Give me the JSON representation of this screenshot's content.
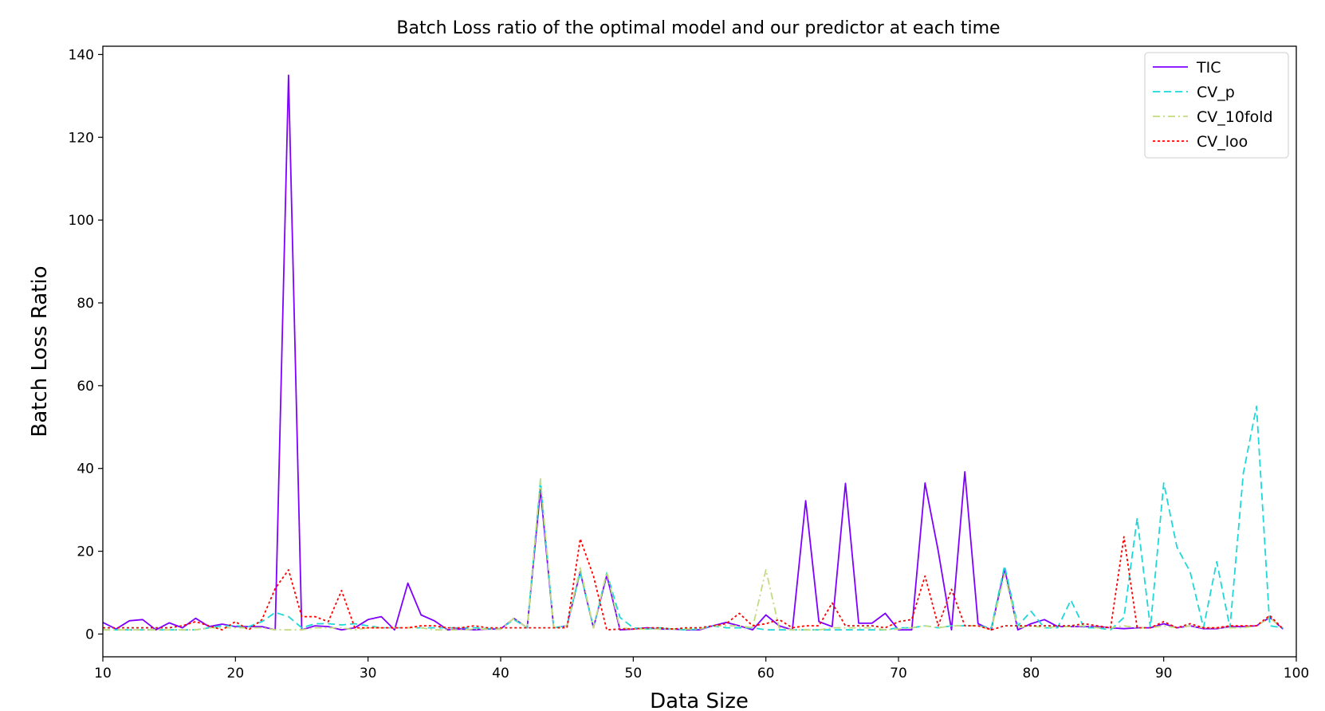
{
  "chart_data": {
    "type": "line",
    "title": "Batch Loss ratio of the optimal model and our predictor at each time",
    "xlabel": "Data Size",
    "ylabel": "Batch Loss Ratio",
    "xlim": [
      10,
      100
    ],
    "ylim": [
      -5.5,
      142
    ],
    "xticks": [
      10,
      20,
      30,
      40,
      50,
      60,
      70,
      80,
      90,
      100
    ],
    "yticks": [
      0,
      20,
      40,
      60,
      80,
      100,
      120,
      140
    ],
    "grid": false,
    "legend_position": "top-right",
    "x": [
      10,
      11,
      12,
      13,
      14,
      15,
      16,
      17,
      18,
      19,
      20,
      21,
      22,
      23,
      24,
      25,
      26,
      27,
      28,
      29,
      30,
      31,
      32,
      33,
      34,
      35,
      36,
      37,
      38,
      39,
      40,
      41,
      42,
      43,
      44,
      45,
      46,
      47,
      48,
      49,
      50,
      51,
      52,
      53,
      54,
      55,
      56,
      57,
      58,
      59,
      60,
      61,
      62,
      63,
      64,
      65,
      66,
      67,
      68,
      69,
      70,
      71,
      72,
      73,
      74,
      75,
      76,
      77,
      78,
      79,
      80,
      81,
      82,
      83,
      84,
      85,
      86,
      87,
      88,
      89,
      90,
      91,
      92,
      93,
      94,
      95,
      96,
      97,
      98,
      99
    ],
    "series": [
      {
        "name": "TIC",
        "color": "#7f00ff",
        "dash": "solid",
        "values": [
          2.8,
          1.2,
          3.2,
          3.5,
          1.0,
          2.7,
          1.5,
          3.8,
          1.8,
          2.4,
          1.8,
          1.8,
          1.8,
          1.0,
          135.0,
          1.0,
          2.0,
          1.8,
          1.0,
          1.5,
          3.5,
          4.2,
          1.0,
          12.3,
          4.6,
          3.2,
          1.0,
          1.2,
          1.0,
          1.2,
          1.2,
          3.8,
          1.5,
          35.0,
          1.5,
          2.0,
          15.0,
          1.5,
          14.2,
          1.0,
          1.2,
          1.5,
          1.2,
          1.2,
          1.0,
          1.0,
          2.0,
          2.8,
          2.0,
          1.0,
          4.6,
          2.0,
          1.0,
          32.2,
          3.0,
          1.8,
          36.4,
          2.6,
          2.6,
          5.0,
          1.0,
          1.0,
          36.5,
          20.0,
          1.0,
          39.2,
          2.5,
          1.0,
          15.8,
          1.0,
          2.5,
          3.5,
          1.8,
          1.8,
          1.8,
          1.8,
          1.5,
          1.3,
          1.5,
          1.5,
          2.5,
          1.5,
          2.0,
          1.3,
          1.3,
          1.8,
          1.8,
          2.0,
          4.0,
          1.2
        ]
      },
      {
        "name": "CV_p",
        "color": "#1dd8d8",
        "dash": "dashed",
        "values": [
          1.0,
          1.0,
          1.0,
          1.0,
          1.0,
          1.0,
          1.0,
          1.0,
          1.5,
          2.0,
          2.0,
          1.8,
          3.0,
          5.2,
          4.2,
          1.5,
          2.5,
          2.5,
          2.2,
          2.5,
          2.0,
          1.5,
          1.5,
          1.5,
          1.5,
          1.5,
          1.5,
          1.5,
          1.5,
          1.3,
          1.3,
          3.5,
          1.5,
          37.0,
          1.5,
          2.0,
          15.0,
          1.5,
          14.8,
          4.0,
          1.5,
          1.2,
          1.5,
          1.2,
          1.0,
          1.2,
          2.0,
          1.5,
          1.5,
          1.5,
          1.0,
          1.0,
          1.0,
          1.0,
          1.0,
          1.0,
          1.0,
          1.0,
          1.0,
          1.0,
          1.5,
          1.5,
          2.0,
          1.5,
          2.0,
          2.0,
          2.0,
          1.5,
          16.5,
          2.0,
          5.5,
          1.5,
          1.5,
          8.2,
          1.5,
          1.5,
          1.0,
          4.0,
          28.0,
          1.5,
          36.5,
          21.0,
          15.0,
          1.5,
          17.5,
          1.5,
          38.8,
          55.0,
          2.0,
          1.5
        ]
      },
      {
        "name": "CV_10fold",
        "color": "#c3db7e",
        "dash": "dashdot",
        "values": [
          1.0,
          1.0,
          1.0,
          1.0,
          1.0,
          1.0,
          1.0,
          1.0,
          1.5,
          1.5,
          1.5,
          1.5,
          1.5,
          1.0,
          1.0,
          1.0,
          1.5,
          1.5,
          1.5,
          1.0,
          1.5,
          1.5,
          1.5,
          1.5,
          1.5,
          1.0,
          1.0,
          1.0,
          1.2,
          1.2,
          1.2,
          3.8,
          1.5,
          37.5,
          1.5,
          2.0,
          16.0,
          1.5,
          15.0,
          1.5,
          1.2,
          1.2,
          1.2,
          1.2,
          1.2,
          1.2,
          2.0,
          2.0,
          2.0,
          1.5,
          15.5,
          1.5,
          1.0,
          1.0,
          1.0,
          1.5,
          1.5,
          1.5,
          1.5,
          1.0,
          1.2,
          1.5,
          2.0,
          1.5,
          2.0,
          2.0,
          2.0,
          1.0,
          14.5,
          1.5,
          2.0,
          1.5,
          1.8,
          1.8,
          2.0,
          1.5,
          1.5,
          2.0,
          1.5,
          1.5,
          2.0,
          1.5,
          2.0,
          1.5,
          1.5,
          1.5,
          1.5,
          2.0,
          4.0,
          1.2
        ]
      },
      {
        "name": "CV_loo",
        "color": "#ff0000",
        "dash": "dotted",
        "values": [
          1.5,
          1.5,
          1.5,
          1.5,
          1.5,
          1.5,
          2.0,
          3.0,
          2.0,
          1.0,
          3.0,
          1.0,
          3.5,
          11.0,
          15.5,
          4.2,
          4.2,
          3.0,
          10.5,
          1.5,
          1.5,
          1.5,
          1.5,
          1.5,
          2.0,
          2.0,
          1.5,
          1.5,
          2.0,
          1.5,
          1.5,
          1.5,
          1.5,
          1.5,
          1.5,
          1.5,
          23.0,
          14.0,
          1.0,
          1.2,
          1.2,
          1.5,
          1.5,
          1.2,
          1.5,
          1.5,
          2.0,
          2.5,
          5.0,
          2.0,
          2.5,
          3.5,
          1.5,
          2.0,
          2.0,
          7.5,
          2.0,
          2.0,
          2.0,
          1.5,
          3.0,
          3.5,
          14.0,
          2.0,
          10.8,
          2.0,
          2.0,
          1.0,
          2.0,
          2.0,
          2.0,
          2.0,
          2.0,
          2.0,
          2.5,
          2.0,
          1.5,
          23.5,
          1.5,
          1.5,
          3.0,
          1.5,
          2.5,
          1.5,
          1.5,
          2.0,
          2.0,
          2.0,
          4.5,
          1.2
        ]
      }
    ]
  }
}
